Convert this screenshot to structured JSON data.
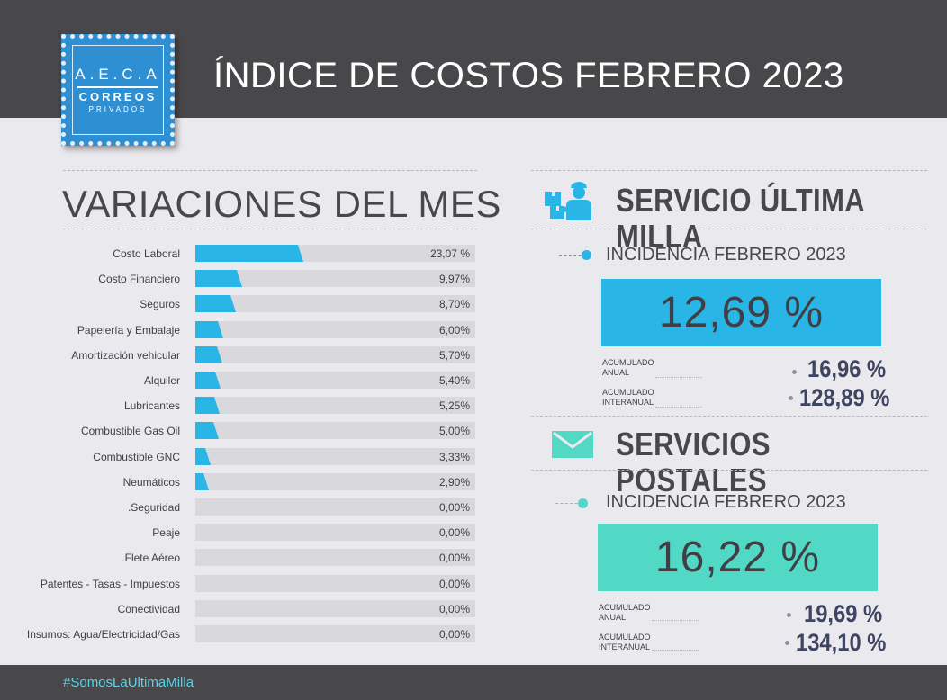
{
  "header": {
    "title": "ÍNDICE DE COSTOS FEBRERO 2023"
  },
  "logo": {
    "line1": "A.E.C.A",
    "line2": "CORREOS",
    "line3": "PRIVADOS"
  },
  "variaciones": {
    "title": "VARIACIONES DEL MES"
  },
  "colors": {
    "header_bg": "#48474a",
    "bar": "#29b6e6",
    "track": "#d8d8dd",
    "ultima_milla": "#29b6e6",
    "postales": "#52d9c6",
    "logo": "#2f8fd3",
    "hashtag": "#5bd1e8"
  },
  "chart_data": {
    "type": "bar",
    "orientation": "horizontal",
    "title": "VARIACIONES DEL MES",
    "xlim": [
      0,
      60
    ],
    "categories": [
      "Costo Laboral",
      "Costo Financiero",
      "Seguros",
      "Papelería y Embalaje",
      "Amortización vehicular",
      "Alquiler",
      "Lubricantes",
      "Combustible Gas Oil",
      "Combustible GNC",
      "Neumáticos",
      ".Seguridad",
      "Peaje",
      ".Flete Aéreo",
      "Patentes - Tasas - Impuestos",
      "Conectividad",
      "Insumos: Agua/Electricidad/Gas"
    ],
    "values": [
      23.07,
      9.97,
      8.7,
      6.0,
      5.7,
      5.4,
      5.25,
      5.0,
      3.33,
      2.9,
      0,
      0,
      0,
      0,
      0,
      0
    ],
    "value_labels": [
      "23,07 %",
      "9,97%",
      "8,70%",
      "6,00%",
      "5,70%",
      "5,40%",
      "5,25%",
      "5,00%",
      "3,33%",
      "2,90%",
      "0,00%",
      "0,00%",
      "0,00%",
      "0,00%",
      "0,00%",
      "0,00%"
    ]
  },
  "ultima_milla": {
    "title": "SERVICIO ÚLTIMA MILLA",
    "icon": "delivery-person-icon",
    "incidencia_label": "INCIDENCIA FEBRERO 2023",
    "incidencia_value": "12,69 %",
    "acumulado_anual_label_1": "ACUMULADO",
    "acumulado_anual_label_2": "ANUAL",
    "acumulado_anual_value": "16,96 %",
    "acumulado_interanual_label_1": "ACUMULADO",
    "acumulado_interanual_label_2": "INTERANUAL",
    "acumulado_interanual_value": "128,89 %"
  },
  "postales": {
    "title": "SERVICIOS POSTALES",
    "icon": "envelope-icon",
    "incidencia_label": "INCIDENCIA FEBRERO 2023",
    "incidencia_value": "16,22 %",
    "acumulado_anual_label_1": "ACUMULADO",
    "acumulado_anual_label_2": "ANUAL",
    "acumulado_anual_value": "19,69 %",
    "acumulado_interanual_label_1": "ACUMULADO",
    "acumulado_interanual_label_2": "INTERANUAL",
    "acumulado_interanual_value": "134,10 %"
  },
  "footer": {
    "hashtag": "#SomosLaUltimaMilla"
  }
}
